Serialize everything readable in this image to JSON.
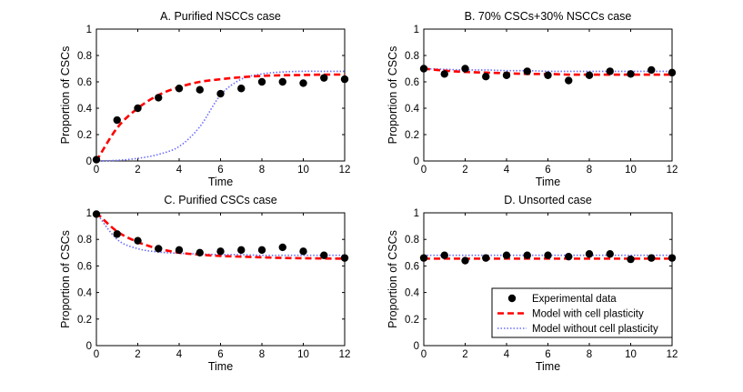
{
  "chart_data": [
    {
      "type": "line",
      "title": "A. Purified NSCCs case",
      "xlabel": "Time",
      "ylabel": "Proportion of CSCs",
      "xlim": [
        0,
        12
      ],
      "ylim": [
        0,
        1
      ],
      "xticks": [
        "0",
        "2",
        "4",
        "6",
        "8",
        "10",
        "12"
      ],
      "yticks": [
        "0",
        "0.2",
        "0.4",
        "0.6",
        "0.8",
        "1"
      ],
      "x": [
        0,
        1,
        2,
        3,
        4,
        5,
        6,
        7,
        8,
        9,
        10,
        11,
        12
      ],
      "series": [
        {
          "name": "Experimental data",
          "values": [
            0.01,
            0.31,
            0.4,
            0.48,
            0.55,
            0.54,
            0.51,
            0.55,
            0.6,
            0.6,
            0.59,
            0.63,
            0.62
          ]
        },
        {
          "name": "Model with cell plasticity",
          "values": [
            0.0,
            0.25,
            0.4,
            0.5,
            0.56,
            0.6,
            0.62,
            0.635,
            0.645,
            0.65,
            0.652,
            0.655,
            0.655
          ]
        },
        {
          "name": "Model without cell plasticity",
          "values": [
            0.0,
            0.005,
            0.02,
            0.05,
            0.11,
            0.26,
            0.5,
            0.62,
            0.66,
            0.675,
            0.68,
            0.68,
            0.68
          ]
        }
      ]
    },
    {
      "type": "line",
      "title": "B. 70% CSCs+30% NSCCs case",
      "xlabel": "Time",
      "ylabel": "Proportion of CSCs",
      "xlim": [
        0,
        12
      ],
      "ylim": [
        0,
        1
      ],
      "xticks": [
        "0",
        "2",
        "4",
        "6",
        "8",
        "10",
        "12"
      ],
      "yticks": [
        "0",
        "0.2",
        "0.4",
        "0.6",
        "0.8",
        "1"
      ],
      "x": [
        0,
        1,
        2,
        3,
        4,
        5,
        6,
        7,
        8,
        9,
        10,
        11,
        12
      ],
      "series": [
        {
          "name": "Experimental data",
          "values": [
            0.7,
            0.66,
            0.7,
            0.64,
            0.65,
            0.68,
            0.65,
            0.61,
            0.65,
            0.68,
            0.66,
            0.69,
            0.67
          ]
        },
        {
          "name": "Model with cell plasticity",
          "values": [
            0.7,
            0.685,
            0.675,
            0.67,
            0.665,
            0.66,
            0.66,
            0.655,
            0.655,
            0.655,
            0.655,
            0.655,
            0.655
          ]
        },
        {
          "name": "Model without cell plasticity",
          "values": [
            0.7,
            0.695,
            0.69,
            0.69,
            0.685,
            0.685,
            0.68,
            0.68,
            0.68,
            0.68,
            0.68,
            0.68,
            0.68
          ]
        }
      ]
    },
    {
      "type": "line",
      "title": "C. Purified CSCs case",
      "xlabel": "Time",
      "ylabel": "Proportion of CSCs",
      "xlim": [
        0,
        12
      ],
      "ylim": [
        0,
        1
      ],
      "xticks": [
        "0",
        "2",
        "4",
        "6",
        "8",
        "10",
        "12"
      ],
      "yticks": [
        "0",
        "0.2",
        "0.4",
        "0.6",
        "0.8",
        "1"
      ],
      "x": [
        0,
        1,
        2,
        3,
        4,
        5,
        6,
        7,
        8,
        9,
        10,
        11,
        12
      ],
      "series": [
        {
          "name": "Experimental data",
          "values": [
            0.99,
            0.84,
            0.79,
            0.73,
            0.72,
            0.7,
            0.71,
            0.72,
            0.72,
            0.74,
            0.71,
            0.68,
            0.66
          ]
        },
        {
          "name": "Model with cell plasticity",
          "values": [
            1.0,
            0.86,
            0.78,
            0.73,
            0.7,
            0.685,
            0.675,
            0.67,
            0.665,
            0.66,
            0.658,
            0.656,
            0.655
          ]
        },
        {
          "name": "Model without cell plasticity",
          "values": [
            1.0,
            0.8,
            0.73,
            0.705,
            0.695,
            0.69,
            0.685,
            0.685,
            0.68,
            0.68,
            0.68,
            0.68,
            0.68
          ]
        }
      ]
    },
    {
      "type": "line",
      "title": "D. Unsorted case",
      "xlabel": "Time",
      "ylabel": "Proportion of CSCs",
      "xlim": [
        0,
        12
      ],
      "ylim": [
        0,
        1
      ],
      "xticks": [
        "0",
        "2",
        "4",
        "6",
        "8",
        "10",
        "12"
      ],
      "yticks": [
        "0",
        "0.2",
        "0.4",
        "0.6",
        "0.8",
        "1"
      ],
      "x": [
        0,
        1,
        2,
        3,
        4,
        5,
        6,
        7,
        8,
        9,
        10,
        11,
        12
      ],
      "series": [
        {
          "name": "Experimental data",
          "values": [
            0.66,
            0.68,
            0.64,
            0.66,
            0.68,
            0.68,
            0.68,
            0.67,
            0.69,
            0.69,
            0.65,
            0.66,
            0.66
          ]
        },
        {
          "name": "Model with cell plasticity",
          "values": [
            0.655,
            0.655,
            0.655,
            0.655,
            0.655,
            0.655,
            0.655,
            0.655,
            0.655,
            0.655,
            0.655,
            0.655,
            0.655
          ]
        },
        {
          "name": "Model without cell plasticity",
          "values": [
            0.68,
            0.68,
            0.68,
            0.68,
            0.68,
            0.68,
            0.68,
            0.68,
            0.68,
            0.68,
            0.68,
            0.68,
            0.68
          ]
        }
      ]
    }
  ],
  "legend": {
    "placement": "bottom-right of panel D",
    "items": [
      {
        "label": "Experimental data",
        "style": "marker"
      },
      {
        "label": "Model with cell plasticity",
        "style": "dashed"
      },
      {
        "label": "Model without cell plasticity",
        "style": "dotted"
      }
    ]
  },
  "colors": {
    "data": "#000000",
    "plasticity": "#ff0000",
    "no_plasticity": "#6b6bff"
  }
}
